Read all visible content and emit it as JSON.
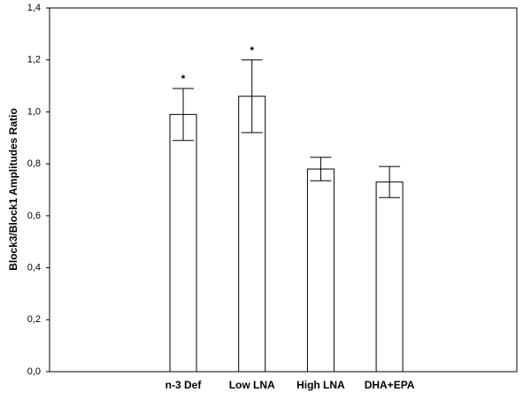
{
  "chart_data": {
    "type": "bar",
    "y_label": "Block3/Block1 Amplitudes Ratio",
    "categories": [
      "n-3 Def",
      "Low LNA",
      "High LNA",
      "DHA+EPA"
    ],
    "values": [
      0.99,
      1.06,
      0.78,
      0.73
    ],
    "errors": [
      0.1,
      0.14,
      0.045,
      0.06
    ],
    "annotations": [
      "*",
      "*",
      null,
      null
    ],
    "color": "#ffffff",
    "ylim": [
      0,
      1.4
    ],
    "yticks": [
      {
        "value": 0,
        "label": "0,0"
      },
      {
        "value": 0.2,
        "label": "0,2"
      },
      {
        "value": 0.4,
        "label": "0,4"
      },
      {
        "value": 0.6,
        "label": "0,6"
      },
      {
        "value": 0.8,
        "label": "0,8"
      },
      {
        "value": 1.0,
        "label": "1,0"
      },
      {
        "value": 1.2,
        "label": "1,2"
      },
      {
        "value": 1.4,
        "label": "1,4"
      }
    ],
    "grid": false
  }
}
